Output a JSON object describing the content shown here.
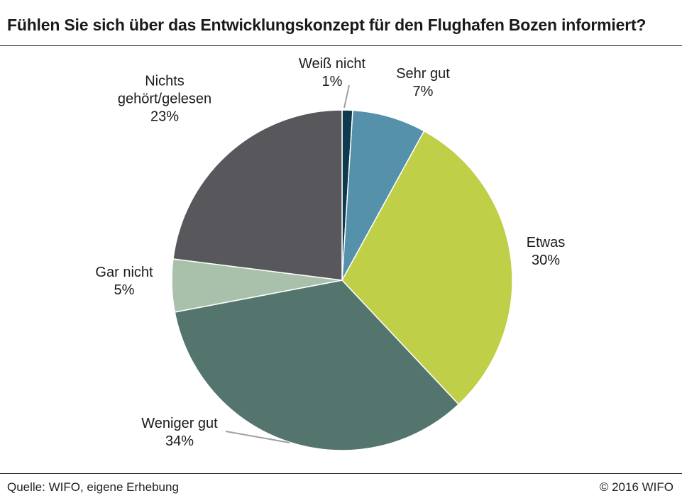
{
  "chart_data": {
    "type": "pie",
    "title": "Fühlen Sie sich über das Entwicklungskonzept für den Flughafen Bozen informiert?",
    "slices": [
      {
        "label": [
          "Weiß nicht"
        ],
        "value": 1,
        "pct_label": "1%",
        "color": "#0e3a4d"
      },
      {
        "label": [
          "Sehr gut"
        ],
        "value": 7,
        "pct_label": "7%",
        "color": "#5591ab"
      },
      {
        "label": [
          "Etwas"
        ],
        "value": 30,
        "pct_label": "30%",
        "color": "#bfcf47"
      },
      {
        "label": [
          "Weniger gut"
        ],
        "value": 34,
        "pct_label": "34%",
        "color": "#54756d"
      },
      {
        "label": [
          "Gar nicht"
        ],
        "value": 5,
        "pct_label": "5%",
        "color": "#a9c1ab"
      },
      {
        "label": [
          "Nichts",
          "gehört/gelesen"
        ],
        "value": 23,
        "pct_label": "23%",
        "color": "#58585c"
      }
    ]
  },
  "footer": {
    "source": "Quelle: WIFO, eigene Erhebung",
    "copyright": "© 2016 WIFO"
  }
}
